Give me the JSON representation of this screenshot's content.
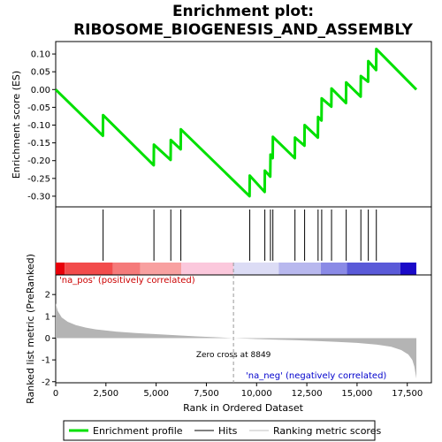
{
  "chart_data": {
    "type": "line",
    "title_line1": "Enrichment plot:",
    "title_line2": "RIBOSOME_BIOGENESIS_AND_ASSEMBLY",
    "es_panel": {
      "ylabel": "Enrichment score (ES)",
      "ylim": [
        -0.33,
        0.135
      ],
      "yticks": [
        0.1,
        0.05,
        0.0,
        -0.05,
        -0.1,
        -0.15,
        -0.2,
        -0.25,
        -0.3
      ],
      "ytick_labels": [
        "0.10",
        "0.05",
        "0.00",
        "-0.05",
        "-0.10",
        "-0.15",
        "-0.20",
        "-0.25",
        "-0.30"
      ],
      "line_color": "#00e000",
      "points": [
        [
          0,
          0.0
        ],
        [
          2350,
          -0.13
        ],
        [
          2360,
          -0.072
        ],
        [
          4880,
          -0.213
        ],
        [
          4890,
          -0.155
        ],
        [
          5720,
          -0.198
        ],
        [
          5730,
          -0.142
        ],
        [
          6220,
          -0.168
        ],
        [
          6230,
          -0.112
        ],
        [
          9650,
          -0.3
        ],
        [
          9660,
          -0.242
        ],
        [
          10400,
          -0.288
        ],
        [
          10410,
          -0.228
        ],
        [
          10680,
          -0.245
        ],
        [
          10690,
          -0.183
        ],
        [
          10800,
          -0.193
        ],
        [
          10810,
          -0.133
        ],
        [
          11900,
          -0.193
        ],
        [
          11910,
          -0.135
        ],
        [
          12380,
          -0.158
        ],
        [
          12390,
          -0.1
        ],
        [
          13050,
          -0.135
        ],
        [
          13060,
          -0.077
        ],
        [
          13230,
          -0.087
        ],
        [
          13240,
          -0.025
        ],
        [
          13720,
          -0.048
        ],
        [
          13730,
          0.003
        ],
        [
          14450,
          -0.038
        ],
        [
          14460,
          0.02
        ],
        [
          15180,
          -0.02
        ],
        [
          15190,
          0.038
        ],
        [
          15550,
          0.022
        ],
        [
          15560,
          0.08
        ],
        [
          15950,
          0.055
        ],
        [
          15960,
          0.114
        ],
        [
          17950,
          0.0
        ]
      ]
    },
    "hits": [
      2360,
      4890,
      5730,
      6230,
      9660,
      10410,
      10690,
      10810,
      11910,
      12390,
      13060,
      13240,
      13730,
      14460,
      15190,
      15560,
      15960
    ],
    "xlim": [
      0,
      18700
    ],
    "xticks": [
      0,
      2500,
      5000,
      7500,
      10000,
      12500,
      15000,
      17500
    ],
    "xtick_labels": [
      "0",
      "2,500",
      "5,000",
      "7,500",
      "10,000",
      "12,500",
      "15,000",
      "17,500"
    ],
    "xlabel": "Rank in Ordered Dataset",
    "heat_bar": {
      "segments": [
        {
          "start": 0,
          "end": 450,
          "color": "#e8000a"
        },
        {
          "start": 450,
          "end": 2850,
          "color": "#f24b4b"
        },
        {
          "start": 2850,
          "end": 4200,
          "color": "#f57a7a"
        },
        {
          "start": 4200,
          "end": 6250,
          "color": "#f8a0a0"
        },
        {
          "start": 6250,
          "end": 8849,
          "color": "#fbc8dc"
        },
        {
          "start": 8849,
          "end": 11100,
          "color": "#dcdcf5"
        },
        {
          "start": 11100,
          "end": 13200,
          "color": "#b8b8ee"
        },
        {
          "start": 13200,
          "end": 14500,
          "color": "#8a8ae6"
        },
        {
          "start": 14500,
          "end": 17150,
          "color": "#5a5ad8"
        },
        {
          "start": 17150,
          "end": 17950,
          "color": "#1a0ac8"
        }
      ]
    },
    "metric_panel": {
      "ylabel": "Ranked list metric (PreRanked)",
      "ylim": [
        -2.05,
        2.9
      ],
      "yticks": [
        2,
        1,
        0,
        -1,
        -2
      ],
      "ytick_labels": [
        "2",
        "1",
        "0",
        "-1",
        "-2"
      ],
      "fill_color": "#b4b4b4",
      "curve": [
        [
          0,
          1.6
        ],
        [
          100,
          1.25
        ],
        [
          300,
          0.95
        ],
        [
          600,
          0.75
        ],
        [
          1000,
          0.6
        ],
        [
          1500,
          0.48
        ],
        [
          2000,
          0.4
        ],
        [
          3000,
          0.3
        ],
        [
          4000,
          0.23
        ],
        [
          5000,
          0.18
        ],
        [
          6000,
          0.13
        ],
        [
          7000,
          0.08
        ],
        [
          8000,
          0.04
        ],
        [
          8849,
          0.0
        ],
        [
          10000,
          -0.04
        ],
        [
          11000,
          -0.07
        ],
        [
          12000,
          -0.1
        ],
        [
          13000,
          -0.13
        ],
        [
          14000,
          -0.17
        ],
        [
          15000,
          -0.22
        ],
        [
          16000,
          -0.3
        ],
        [
          16700,
          -0.4
        ],
        [
          17200,
          -0.55
        ],
        [
          17550,
          -0.75
        ],
        [
          17750,
          -1.0
        ],
        [
          17850,
          -1.3
        ],
        [
          17950,
          -1.85
        ]
      ],
      "zero_cross": 8849,
      "zero_cross_label": "Zero cross at 8849",
      "pos_label": "'na_pos' (positively correlated)",
      "neg_label": "'na_neg' (negatively correlated)"
    },
    "legend": {
      "items": [
        {
          "label": "Enrichment profile",
          "color": "#00e000",
          "kind": "thick-line"
        },
        {
          "label": "Hits",
          "color": "#000000",
          "kind": "thin-line"
        },
        {
          "label": "Ranking metric scores",
          "color": "#c0c0c0",
          "kind": "thin-line"
        }
      ]
    }
  }
}
